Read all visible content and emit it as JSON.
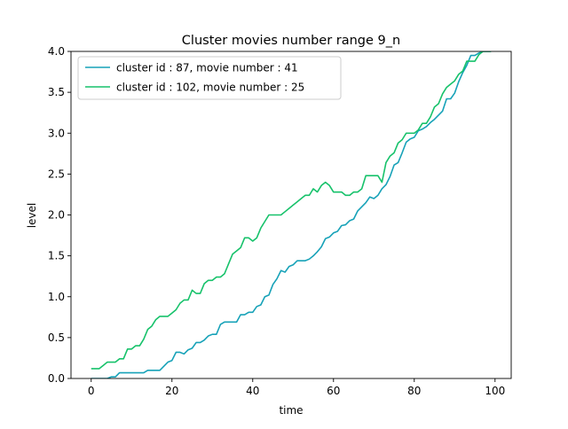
{
  "chart_data": {
    "type": "line",
    "title": "Cluster movies number range 9_n",
    "xlabel": "time",
    "ylabel": "level",
    "xlim": [
      -5,
      104
    ],
    "ylim": [
      0,
      4.0
    ],
    "xticks": [
      0,
      20,
      40,
      60,
      80,
      100
    ],
    "yticks": [
      0.0,
      0.5,
      1.0,
      1.5,
      2.0,
      2.5,
      3.0,
      3.5,
      4.0
    ],
    "xtick_labels": [
      "0",
      "20",
      "40",
      "60",
      "80",
      "100"
    ],
    "ytick_labels": [
      "0.0",
      "0.5",
      "1.0",
      "1.5",
      "2.0",
      "2.5",
      "3.0",
      "3.5",
      "4.0"
    ],
    "grid": false,
    "legend_position": "upper-left",
    "series": [
      {
        "name": "cluster id : 87, movie number : 41",
        "color": "#17a2b8",
        "x": [
          0,
          1,
          2,
          3,
          4,
          5,
          6,
          7,
          8,
          9,
          10,
          11,
          12,
          13,
          14,
          15,
          16,
          17,
          18,
          19,
          20,
          21,
          22,
          23,
          24,
          25,
          26,
          27,
          28,
          29,
          30,
          31,
          32,
          33,
          34,
          35,
          36,
          37,
          38,
          39,
          40,
          41,
          42,
          43,
          44,
          45,
          46,
          47,
          48,
          49,
          50,
          51,
          52,
          53,
          54,
          55,
          56,
          57,
          58,
          59,
          60,
          61,
          62,
          63,
          64,
          65,
          66,
          67,
          68,
          69,
          70,
          71,
          72,
          73,
          74,
          75,
          76,
          77,
          78,
          79,
          80,
          81,
          82,
          83,
          84,
          85,
          86,
          87,
          88,
          89,
          90,
          91,
          92,
          93,
          94,
          95,
          96,
          97,
          98,
          99
        ],
        "y": [
          0.0,
          0.0,
          0.0,
          0.0,
          0.0,
          0.02,
          0.02,
          0.07,
          0.07,
          0.07,
          0.07,
          0.07,
          0.07,
          0.07,
          0.1,
          0.1,
          0.1,
          0.1,
          0.15,
          0.2,
          0.22,
          0.32,
          0.32,
          0.3,
          0.35,
          0.37,
          0.44,
          0.44,
          0.47,
          0.52,
          0.54,
          0.54,
          0.66,
          0.69,
          0.69,
          0.69,
          0.69,
          0.78,
          0.78,
          0.81,
          0.81,
          0.88,
          0.9,
          1.0,
          1.02,
          1.15,
          1.22,
          1.32,
          1.3,
          1.37,
          1.39,
          1.44,
          1.44,
          1.44,
          1.46,
          1.5,
          1.55,
          1.61,
          1.71,
          1.73,
          1.78,
          1.8,
          1.87,
          1.88,
          1.93,
          1.95,
          2.05,
          2.1,
          2.15,
          2.22,
          2.2,
          2.24,
          2.32,
          2.37,
          2.47,
          2.61,
          2.64,
          2.76,
          2.89,
          2.93,
          2.95,
          3.03,
          3.05,
          3.08,
          3.13,
          3.17,
          3.22,
          3.27,
          3.42,
          3.42,
          3.49,
          3.63,
          3.74,
          3.83,
          3.95,
          3.95,
          3.98,
          4.0,
          4.0,
          4.0
        ]
      },
      {
        "name": "cluster id : 102, movie number : 25",
        "color": "#17c26b",
        "x": [
          0,
          1,
          2,
          3,
          4,
          5,
          6,
          7,
          8,
          9,
          10,
          11,
          12,
          13,
          14,
          15,
          16,
          17,
          18,
          19,
          20,
          21,
          22,
          23,
          24,
          25,
          26,
          27,
          28,
          29,
          30,
          31,
          32,
          33,
          34,
          35,
          36,
          37,
          38,
          39,
          40,
          41,
          42,
          43,
          44,
          45,
          46,
          47,
          48,
          49,
          50,
          51,
          52,
          53,
          54,
          55,
          56,
          57,
          58,
          59,
          60,
          61,
          62,
          63,
          64,
          65,
          66,
          67,
          68,
          69,
          70,
          71,
          72,
          73,
          74,
          75,
          76,
          77,
          78,
          79,
          80,
          81,
          82,
          83,
          84,
          85,
          86,
          87,
          88,
          89,
          90,
          91,
          92,
          93,
          94,
          95,
          96,
          97,
          98,
          99
        ],
        "y": [
          0.12,
          0.12,
          0.12,
          0.16,
          0.2,
          0.2,
          0.2,
          0.24,
          0.24,
          0.36,
          0.36,
          0.4,
          0.4,
          0.48,
          0.6,
          0.64,
          0.72,
          0.76,
          0.76,
          0.76,
          0.8,
          0.84,
          0.92,
          0.96,
          0.96,
          1.08,
          1.04,
          1.04,
          1.16,
          1.2,
          1.2,
          1.24,
          1.24,
          1.28,
          1.4,
          1.52,
          1.56,
          1.6,
          1.72,
          1.72,
          1.68,
          1.72,
          1.84,
          1.92,
          2.0,
          2.0,
          2.0,
          2.0,
          2.04,
          2.08,
          2.12,
          2.16,
          2.2,
          2.24,
          2.24,
          2.32,
          2.28,
          2.36,
          2.4,
          2.36,
          2.28,
          2.28,
          2.28,
          2.24,
          2.24,
          2.28,
          2.28,
          2.32,
          2.48,
          2.48,
          2.48,
          2.48,
          2.4,
          2.64,
          2.72,
          2.76,
          2.88,
          2.92,
          3.0,
          3.0,
          3.0,
          3.04,
          3.12,
          3.12,
          3.2,
          3.32,
          3.36,
          3.48,
          3.56,
          3.6,
          3.64,
          3.72,
          3.76,
          3.88,
          3.88,
          3.88,
          3.96,
          4.0,
          4.0,
          4.0
        ]
      }
    ]
  }
}
